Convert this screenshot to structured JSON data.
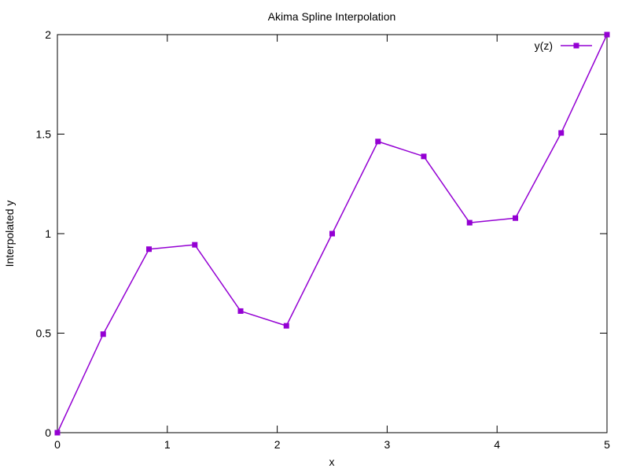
{
  "chart_data": {
    "type": "line",
    "title": "Akima Spline Interpolation",
    "xlabel": "x",
    "ylabel": "Interpolated y",
    "xlim": [
      0,
      5
    ],
    "ylim": [
      0,
      2
    ],
    "xticks": [
      0,
      1,
      2,
      3,
      4,
      5
    ],
    "xtick_labels": [
      "0",
      "1",
      "2",
      "3",
      "4",
      "5"
    ],
    "yticks": [
      0,
      0.5,
      1,
      1.5,
      2
    ],
    "ytick_labels": [
      "0",
      "0.5",
      "1",
      "1.5",
      "2"
    ],
    "grid": false,
    "legend_position": "top-right",
    "series": [
      {
        "name": "y(z)",
        "color": "#9400d3",
        "marker": "square",
        "x": [
          0,
          0.4167,
          0.8333,
          1.25,
          1.6667,
          2.0833,
          2.5,
          2.9167,
          3.3333,
          3.75,
          4.1667,
          4.5833,
          5
        ],
        "y": [
          0,
          0.495,
          0.922,
          0.944,
          0.611,
          0.537,
          1.0,
          1.463,
          1.388,
          1.055,
          1.078,
          1.506,
          2.0
        ]
      }
    ]
  }
}
